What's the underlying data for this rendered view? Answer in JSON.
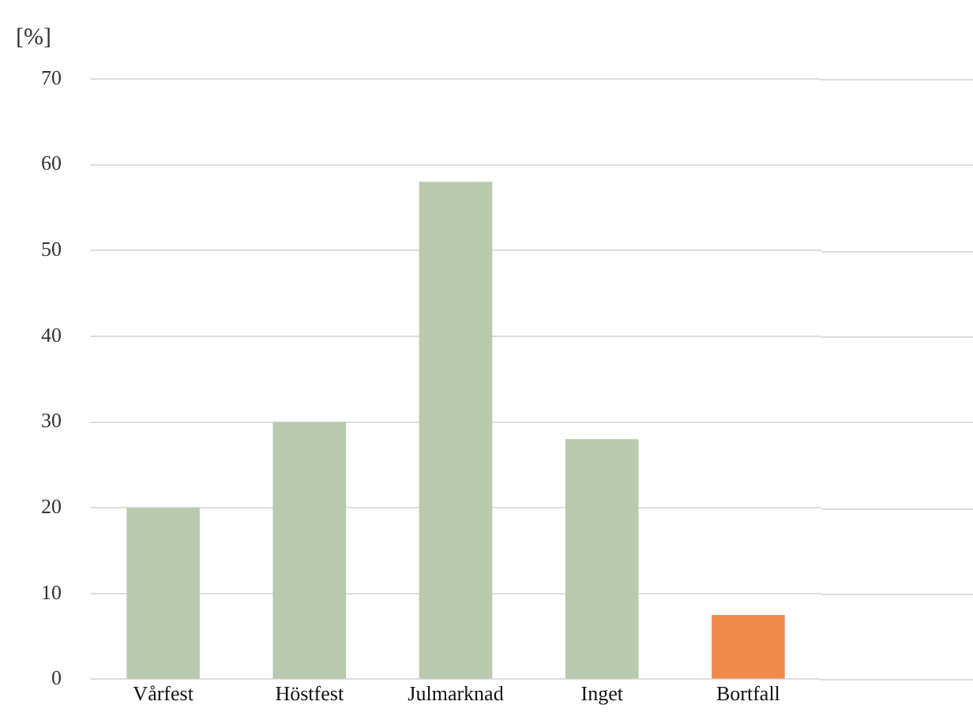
{
  "chart_data": {
    "type": "bar",
    "ylabel": "[%]",
    "categories": [
      "Vårfest",
      "Höstfest",
      "Julmarknad",
      "Inget",
      "Bortfall"
    ],
    "values": [
      20,
      30,
      58,
      28,
      7.5
    ],
    "colors": [
      "#b8c9ae",
      "#b8c9ae",
      "#b8c9ae",
      "#b8c9ae",
      "#ef8a4c"
    ],
    "ylim": [
      0,
      70
    ],
    "yticks": [
      0,
      10,
      20,
      30,
      40,
      50,
      60,
      70
    ],
    "grid": "y",
    "legend": false
  }
}
